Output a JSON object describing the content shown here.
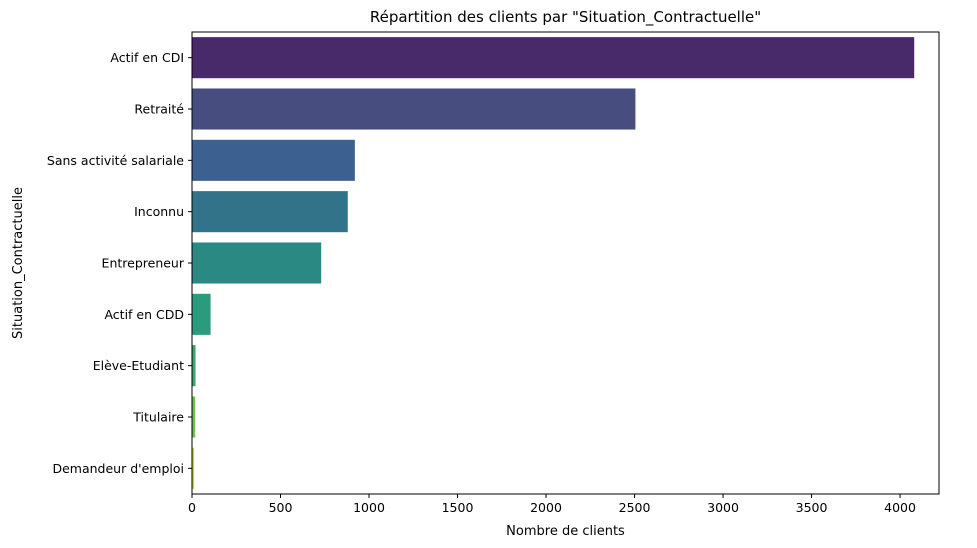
{
  "chart_data": {
    "type": "bar",
    "orientation": "horizontal",
    "title": "Répartition des clients par \"Situation_Contractuelle\"",
    "xlabel": "Nombre de clients",
    "ylabel": "Situation_Contractuelle",
    "xlim": [
      0,
      4220
    ],
    "xticks": [
      0,
      500,
      1000,
      1500,
      2000,
      2500,
      3000,
      3500,
      4000
    ],
    "grid": false,
    "legend": "none",
    "palette": "viridis",
    "categories": [
      "Actif en CDI",
      "Retraité",
      "Sans activité salariale",
      "Inconnu",
      "Entrepreneur",
      "Actif en CDD",
      "Elève-Etudiant",
      "Titulaire",
      "Demandeur d'emploi"
    ],
    "values": [
      4080,
      2505,
      920,
      880,
      730,
      105,
      20,
      18,
      12
    ],
    "colors": [
      "#482a6b",
      "#474e7f",
      "#3c6191",
      "#33738a",
      "#2b8983",
      "#2a9c7d",
      "#3ca46f",
      "#70be4c",
      "#c1d82b"
    ]
  }
}
